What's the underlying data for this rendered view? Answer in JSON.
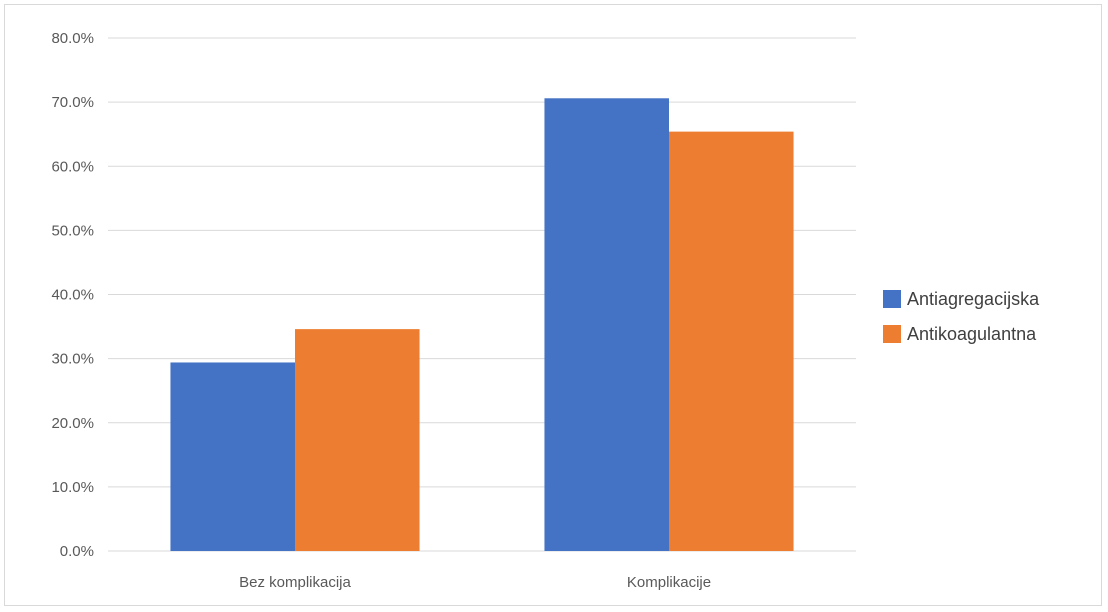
{
  "chart_data": {
    "type": "bar",
    "title": "",
    "xlabel": "",
    "ylabel": "",
    "categories": [
      "Bez komplikacija",
      "Komplikacije"
    ],
    "series": [
      {
        "name": "Antiagregacijska",
        "values": [
          29.4,
          70.6
        ],
        "color": "#4472C4"
      },
      {
        "name": "Antikoagulantna",
        "values": [
          34.6,
          65.4
        ],
        "color": "#ED7D31"
      }
    ],
    "ylim": [
      0,
      80
    ],
    "yticks": [
      "0.0%",
      "10.0%",
      "20.0%",
      "30.0%",
      "40.0%",
      "50.0%",
      "60.0%",
      "70.0%",
      "80.0%"
    ],
    "grid": true,
    "gridline_color": "#d9d9d9",
    "legend_position": "right"
  }
}
